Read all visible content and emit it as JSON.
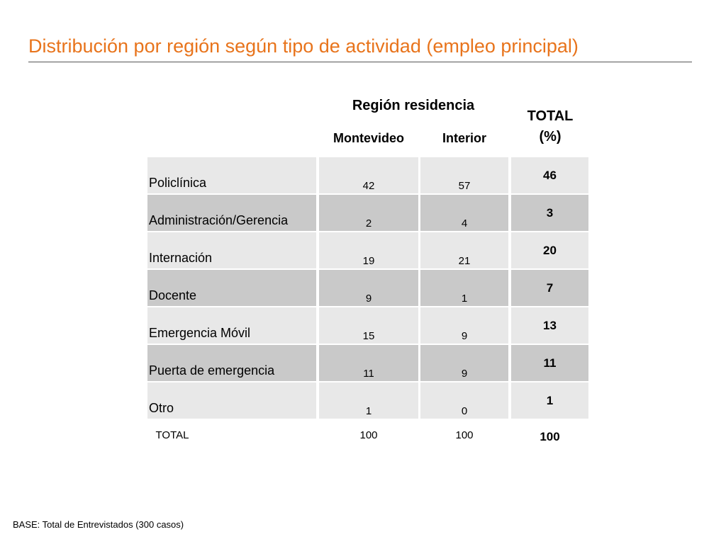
{
  "title": "Distribución por región según tipo de actividad (empleo principal)",
  "header": {
    "region": "Región residencia",
    "montevideo": "Montevideo",
    "interior": "Interior",
    "total_line1": "TOTAL",
    "total_line2": "(%)"
  },
  "rows": [
    {
      "label": "Policlínica",
      "montevideo": "42",
      "interior": "57",
      "total": "46"
    },
    {
      "label": "Administración/Gerencia",
      "montevideo": "2",
      "interior": "4",
      "total": "3"
    },
    {
      "label": "Internación",
      "montevideo": "19",
      "interior": "21",
      "total": "20"
    },
    {
      "label": "Docente",
      "montevideo": "9",
      "interior": "1",
      "total": "7"
    },
    {
      "label": "Emergencia Móvil",
      "montevideo": "15",
      "interior": "9",
      "total": "13"
    },
    {
      "label": "Puerta de emergencia",
      "montevideo": "11",
      "interior": "9",
      "total": "11"
    },
    {
      "label": "Otro",
      "montevideo": "1",
      "interior": "0",
      "total": "1"
    }
  ],
  "total_row": {
    "label": "TOTAL",
    "montevideo": "100",
    "interior": "100",
    "total": "100"
  },
  "footnote": "BASE: Total de Entrevistados (300 casos)",
  "colors": {
    "title": "#e8741c",
    "row_light": "#e8e8e8",
    "row_dark": "#c9c9c9"
  }
}
